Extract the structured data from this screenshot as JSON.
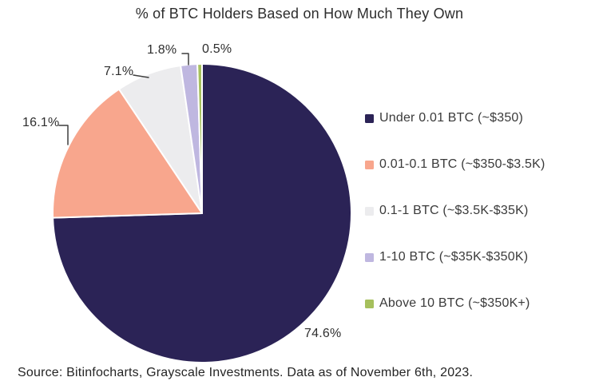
{
  "title": "% of BTC Holders Based on How Much They Own",
  "source": "Source: Bitinfocharts, Grayscale Investments. Data as of November 6th, 2023.",
  "colors": {
    "background": "#ffffff",
    "title_text": "#2d2d2d",
    "legend_text": "#3a3a3a",
    "leader_line": "#3f3f3f",
    "slice_separator": "#ffffff"
  },
  "chart_data": {
    "type": "pie",
    "title": "% of BTC Holders Based on How Much They Own",
    "start_angle_deg": 0,
    "direction": "clockwise",
    "legend_position": "right",
    "slices": [
      {
        "label": "Under 0.01 BTC (~$350)",
        "value": 74.6,
        "display": "74.6%",
        "color": "#2b2356"
      },
      {
        "label": "0.01-0.1 BTC (~$350-$3.5K)",
        "value": 16.1,
        "display": "16.1%",
        "color": "#f8a68d"
      },
      {
        "label": "0.1-1 BTC (~$3.5K-$35K)",
        "value": 7.1,
        "display": "7.1%",
        "color": "#ececee"
      },
      {
        "label": "1-10 BTC (~$35K-$350K)",
        "value": 1.8,
        "display": "1.8%",
        "color": "#bfb7e0"
      },
      {
        "label": "Above 10 BTC (~$350K+)",
        "value": 0.5,
        "display": "0.5%",
        "color": "#a6c05d"
      }
    ]
  }
}
